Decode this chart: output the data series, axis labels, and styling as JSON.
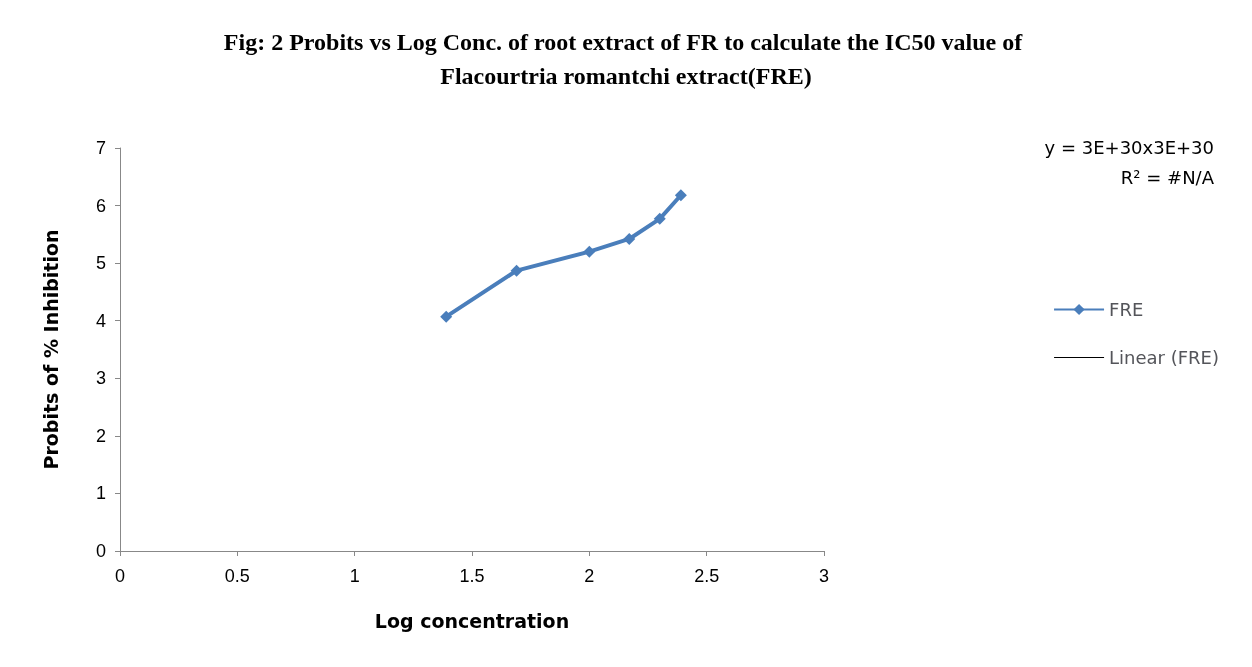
{
  "chart_data": {
    "type": "line",
    "title": "Fig: 2 Probits vs Log Conc. of root extract of FR to calculate the IC50 value of Flacourtria romantchi extract(FRE)",
    "xlabel": "Log concentration",
    "ylabel": "Probits of % Inhibition",
    "x": [
      1.39,
      1.69,
      2.0,
      2.17,
      2.3,
      2.39
    ],
    "series": [
      {
        "name": "FRE",
        "color": "#4a7ebb",
        "values": [
          4.07,
          4.87,
          5.2,
          5.42,
          5.77,
          6.18
        ]
      },
      {
        "name": "Linear (FRE)",
        "color": "#000000",
        "marker": "none",
        "values": [
          null,
          null,
          null,
          null,
          null,
          null
        ]
      }
    ],
    "xlim": [
      0,
      3
    ],
    "xticks": [
      0,
      0.5,
      1,
      1.5,
      2,
      2.5,
      3
    ],
    "ylim": [
      0,
      7
    ],
    "yticks": [
      0,
      1,
      2,
      3,
      4,
      5,
      6,
      7
    ],
    "grid": false,
    "legend": "right",
    "marker": "diamond",
    "annotations": [
      "y = 3E+30x3E+30",
      "R² = #N/A"
    ]
  }
}
